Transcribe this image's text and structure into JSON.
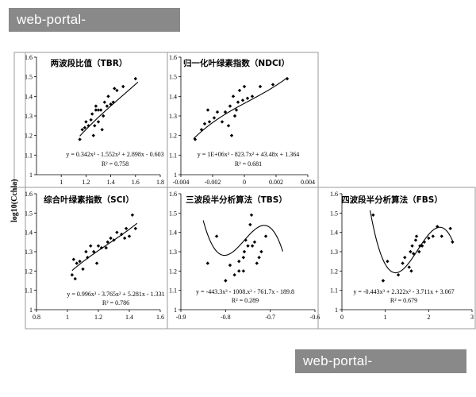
{
  "watermark": {
    "text": "web-portal-rayspeed.com"
  },
  "ylabel_shared": "log10(Cchla)",
  "chart_data": [
    {
      "type": "scatter",
      "title": "两波段比值（TBR）",
      "xlim": [
        0.8,
        1.8
      ],
      "xticks": [
        1,
        1.2,
        1.4,
        1.6,
        1.8
      ],
      "xtick_labels": [
        "1",
        "1.2",
        "1.4",
        "1.6",
        "1.8"
      ],
      "ylim": [
        1,
        1.6
      ],
      "yticks": [
        1,
        1.1,
        1.2,
        1.3,
        1.4,
        1.5,
        1.6
      ],
      "ytick_labels": [
        "1",
        "1.1",
        "1.2",
        "1.3",
        "1.4",
        "1.5",
        "1.6"
      ],
      "points": [
        [
          1.15,
          1.18
        ],
        [
          1.17,
          1.23
        ],
        [
          1.19,
          1.24
        ],
        [
          1.2,
          1.27
        ],
        [
          1.22,
          1.25
        ],
        [
          1.24,
          1.28
        ],
        [
          1.25,
          1.31
        ],
        [
          1.26,
          1.2
        ],
        [
          1.27,
          1.25
        ],
        [
          1.28,
          1.33
        ],
        [
          1.3,
          1.33
        ],
        [
          1.3,
          1.27
        ],
        [
          1.32,
          1.33
        ],
        [
          1.33,
          1.23
        ],
        [
          1.35,
          1.37
        ],
        [
          1.37,
          1.35
        ],
        [
          1.38,
          1.4
        ],
        [
          1.4,
          1.36
        ],
        [
          1.42,
          1.37
        ],
        [
          1.43,
          1.44
        ],
        [
          1.45,
          1.43
        ],
        [
          1.5,
          1.45
        ],
        [
          1.6,
          1.49
        ],
        [
          1.28,
          1.35
        ],
        [
          1.34,
          1.3
        ]
      ],
      "fit": {
        "func": "poly",
        "coef": [
          -0.603,
          2.898,
          -1.552,
          0.342
        ],
        "xrange": [
          1.15,
          1.62
        ]
      },
      "equation": "y = 0.342x³ - 1.552x² + 2.898x - 0.603",
      "r2": "R² = 0.758"
    },
    {
      "type": "scatter",
      "title": "归一化叶绿素指数（NDCI）",
      "xlim": [
        -0.004,
        0.004
      ],
      "xticks": [
        -0.004,
        -0.002,
        0,
        0.002,
        0.004
      ],
      "xtick_labels": [
        "-0.004",
        "-0.002",
        "0",
        "0.002",
        "0.004"
      ],
      "ylim": [
        1,
        1.6
      ],
      "yticks": [
        1,
        1.1,
        1.2,
        1.3,
        1.4,
        1.5,
        1.6
      ],
      "ytick_labels": [
        "1",
        "1.1",
        "1.2",
        "1.3",
        "1.4",
        "1.5",
        "1.6"
      ],
      "points": [
        [
          -0.0031,
          1.18
        ],
        [
          -0.0027,
          1.23
        ],
        [
          -0.0025,
          1.26
        ],
        [
          -0.0023,
          1.33
        ],
        [
          -0.0022,
          1.27
        ],
        [
          -0.0019,
          1.29
        ],
        [
          -0.0017,
          1.32
        ],
        [
          -0.0014,
          1.27
        ],
        [
          -0.0012,
          1.32
        ],
        [
          -0.001,
          1.25
        ],
        [
          -0.0009,
          1.35
        ],
        [
          -0.0007,
          1.4
        ],
        [
          -0.0005,
          1.33
        ],
        [
          -0.0004,
          1.37
        ],
        [
          -0.0003,
          1.43
        ],
        [
          -0.0001,
          1.38
        ],
        [
          0,
          1.45
        ],
        [
          0.0002,
          1.39
        ],
        [
          0.0005,
          1.4
        ],
        [
          0.001,
          1.45
        ],
        [
          0.0018,
          1.46
        ],
        [
          0.0027,
          1.49
        ],
        [
          -0.0008,
          1.2
        ],
        [
          -0.0006,
          1.3
        ]
      ],
      "fit": {
        "func": "poly",
        "coef": [
          1.364,
          43.48,
          -823.7,
          1000000
        ],
        "xrange": [
          -0.0032,
          0.0027
        ]
      },
      "equation": "y = 1E+06x³ - 823.7x² + 43.48x + 1.364",
      "r2": "R² = 0.681"
    },
    {
      "type": "scatter",
      "title": "综合叶绿素指数（SCI）",
      "xlim": [
        0.8,
        1.6
      ],
      "xticks": [
        0.8,
        1,
        1.2,
        1.4,
        1.6
      ],
      "xtick_labels": [
        "0.8",
        "1",
        "1.2",
        "1.4",
        "1.6"
      ],
      "ylim": [
        1,
        1.6
      ],
      "yticks": [
        1,
        1.1,
        1.2,
        1.3,
        1.4,
        1.5,
        1.6
      ],
      "ytick_labels": [
        "1",
        "1.1",
        "1.2",
        "1.3",
        "1.4",
        "1.5",
        "1.6"
      ],
      "points": [
        [
          1.03,
          1.18
        ],
        [
          1.05,
          1.16
        ],
        [
          1.06,
          1.24
        ],
        [
          1.08,
          1.25
        ],
        [
          1.1,
          1.21
        ],
        [
          1.12,
          1.3
        ],
        [
          1.13,
          1.27
        ],
        [
          1.15,
          1.33
        ],
        [
          1.17,
          1.3
        ],
        [
          1.19,
          1.24
        ],
        [
          1.2,
          1.33
        ],
        [
          1.22,
          1.32
        ],
        [
          1.25,
          1.32
        ],
        [
          1.28,
          1.37
        ],
        [
          1.3,
          1.36
        ],
        [
          1.32,
          1.4
        ],
        [
          1.35,
          1.39
        ],
        [
          1.37,
          1.37
        ],
        [
          1.38,
          1.42
        ],
        [
          1.4,
          1.38
        ],
        [
          1.42,
          1.49
        ],
        [
          1.44,
          1.42
        ],
        [
          1.04,
          1.26
        ],
        [
          1.26,
          1.35
        ]
      ],
      "fit": {
        "func": "poly",
        "coef": [
          -1.331,
          5.281,
          -3.765,
          0.996
        ],
        "xrange": [
          1.03,
          1.45
        ]
      },
      "equation": "y = 0.996x³ - 3.765x² + 5.281x - 1.331",
      "r2": "R² = 0.786"
    },
    {
      "type": "scatter",
      "title": "三波段半分析算法（TBS）",
      "xlim": [
        -0.9,
        -0.6
      ],
      "xticks": [
        -0.9,
        -0.8,
        -0.7,
        -0.6
      ],
      "xtick_labels": [
        "-0.9",
        "-0.8",
        "-0.7",
        "-0.6"
      ],
      "ylim": [
        1,
        1.6
      ],
      "yticks": [
        1,
        1.1,
        1.2,
        1.3,
        1.4,
        1.5,
        1.6
      ],
      "ytick_labels": [
        "1",
        "1.1",
        "1.2",
        "1.3",
        "1.4",
        "1.5",
        "1.6"
      ],
      "points": [
        [
          -0.84,
          1.24
        ],
        [
          -0.82,
          1.38
        ],
        [
          -0.8,
          1.15
        ],
        [
          -0.79,
          1.23
        ],
        [
          -0.78,
          1.18
        ],
        [
          -0.77,
          1.2
        ],
        [
          -0.76,
          1.27
        ],
        [
          -0.758,
          1.3
        ],
        [
          -0.755,
          1.36
        ],
        [
          -0.75,
          1.33
        ],
        [
          -0.745,
          1.44
        ],
        [
          -0.742,
          1.49
        ],
        [
          -0.74,
          1.33
        ],
        [
          -0.735,
          1.35
        ],
        [
          -0.73,
          1.24
        ],
        [
          -0.725,
          1.27
        ],
        [
          -0.72,
          1.3
        ],
        [
          -0.71,
          1.38
        ],
        [
          -0.76,
          1.2
        ],
        [
          -0.77,
          1.25
        ]
      ],
      "fit": {
        "func": "poly",
        "coef": [
          -189.8,
          -761.7,
          -1008.2,
          -443.3
        ],
        "xrange": [
          -0.85,
          -0.672
        ]
      },
      "equation": "y = -443.3x³ - 1008.x² - 761.7x - 189.8",
      "r2": "R² = 0.289"
    },
    {
      "type": "scatter",
      "title": "四波段半分析算法（FBS）",
      "xlim": [
        0,
        3
      ],
      "xticks": [
        0,
        1,
        2,
        3
      ],
      "xtick_labels": [
        "0",
        "1",
        "2",
        "3"
      ],
      "ylim": [
        1,
        1.6
      ],
      "yticks": [
        1,
        1.1,
        1.2,
        1.3,
        1.4,
        1.5,
        1.6
      ],
      "ytick_labels": [
        "1",
        "1.1",
        "1.2",
        "1.3",
        "1.4",
        "1.5",
        "1.6"
      ],
      "points": [
        [
          0.72,
          1.49
        ],
        [
          0.95,
          1.15
        ],
        [
          1.05,
          1.25
        ],
        [
          1.3,
          1.18
        ],
        [
          1.4,
          1.24
        ],
        [
          1.45,
          1.27
        ],
        [
          1.55,
          1.22
        ],
        [
          1.58,
          1.3
        ],
        [
          1.6,
          1.2
        ],
        [
          1.62,
          1.33
        ],
        [
          1.65,
          1.29
        ],
        [
          1.7,
          1.36
        ],
        [
          1.72,
          1.38
        ],
        [
          1.78,
          1.3
        ],
        [
          1.8,
          1.33
        ],
        [
          1.85,
          1.33
        ],
        [
          1.9,
          1.35
        ],
        [
          2.0,
          1.37
        ],
        [
          2.1,
          1.38
        ],
        [
          2.2,
          1.43
        ],
        [
          2.3,
          1.38
        ],
        [
          2.5,
          1.42
        ],
        [
          2.55,
          1.35
        ]
      ],
      "fit": {
        "func": "poly",
        "coef": [
          3.067,
          -3.711,
          2.322,
          -0.443
        ],
        "xrange": [
          0.65,
          2.55
        ]
      },
      "equation": "y = -0.443x³ + 2.322x² - 3.711x + 3.067",
      "r2": "R² = 0.679"
    }
  ]
}
